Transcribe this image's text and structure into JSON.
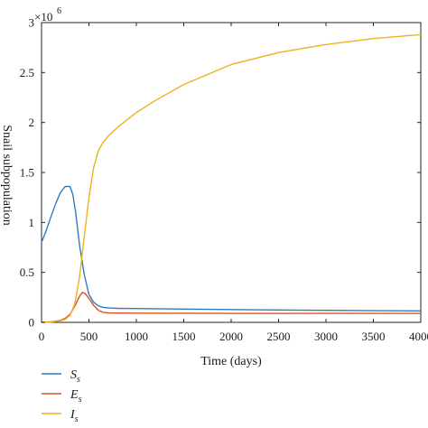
{
  "chart_data": {
    "type": "line",
    "title": "",
    "xlabel": "Time (days)",
    "ylabel": "Snail subpopulation",
    "y_multiplier_label": "×10",
    "y_multiplier_exp": "6",
    "xlim": [
      0,
      4000
    ],
    "ylim": [
      0,
      3
    ],
    "x_ticks": [
      0,
      500,
      1000,
      1500,
      2000,
      2500,
      3000,
      3500,
      4000
    ],
    "y_ticks": [
      0,
      0.5,
      1,
      1.5,
      2,
      2.5,
      3
    ],
    "x_tick_labels": [
      "0",
      "500",
      "1000",
      "1500",
      "2000",
      "2500",
      "3000",
      "3500",
      "4000"
    ],
    "y_tick_labels": [
      "0",
      "0.5",
      "1",
      "1.5",
      "2",
      "2.5",
      "3"
    ],
    "grid": false,
    "legend_position": "bottom-left",
    "series": [
      {
        "name": "S",
        "subscript": "s",
        "color": "#2f7bbf",
        "x": [
          0,
          50,
          100,
          150,
          200,
          250,
          300,
          330,
          360,
          400,
          450,
          500,
          550,
          600,
          650,
          700,
          800,
          1000,
          1500,
          2000,
          2500,
          3000,
          3500,
          4000
        ],
        "y": [
          0.8,
          0.92,
          1.06,
          1.19,
          1.3,
          1.36,
          1.36,
          1.28,
          1.1,
          0.78,
          0.48,
          0.28,
          0.2,
          0.165,
          0.15,
          0.145,
          0.14,
          0.138,
          0.133,
          0.128,
          0.124,
          0.12,
          0.117,
          0.115
        ]
      },
      {
        "name": "E",
        "subscript": "s",
        "color": "#d9531e",
        "x": [
          0,
          100,
          200,
          250,
          300,
          350,
          400,
          430,
          460,
          500,
          550,
          600,
          650,
          700,
          800,
          1000,
          1500,
          2000,
          2500,
          3000,
          3500,
          4000
        ],
        "y": [
          0,
          0.005,
          0.02,
          0.04,
          0.08,
          0.16,
          0.26,
          0.3,
          0.29,
          0.24,
          0.17,
          0.12,
          0.1,
          0.095,
          0.093,
          0.092,
          0.091,
          0.09,
          0.09,
          0.09,
          0.09,
          0.09
        ]
      },
      {
        "name": "I",
        "subscript": "s",
        "color": "#edb120",
        "x": [
          0,
          100,
          200,
          250,
          300,
          350,
          400,
          450,
          500,
          550,
          600,
          650,
          700,
          800,
          1000,
          1200,
          1500,
          2000,
          2500,
          3000,
          3500,
          4000
        ],
        "y": [
          0,
          0.003,
          0.015,
          0.03,
          0.07,
          0.18,
          0.45,
          0.85,
          1.25,
          1.55,
          1.72,
          1.8,
          1.86,
          1.95,
          2.1,
          2.22,
          2.38,
          2.58,
          2.7,
          2.78,
          2.84,
          2.88
        ]
      }
    ]
  }
}
